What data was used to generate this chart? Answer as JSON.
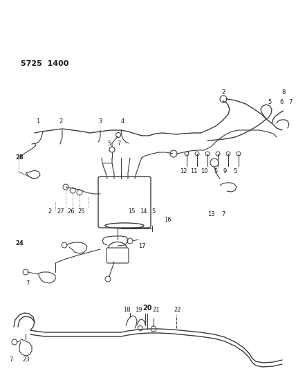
{
  "title": "5725  1400",
  "bg_color": "#ffffff",
  "line_color": "#3a3a3a",
  "text_color": "#1a1a1a",
  "figsize": [
    4.28,
    5.33
  ],
  "dpi": 100
}
